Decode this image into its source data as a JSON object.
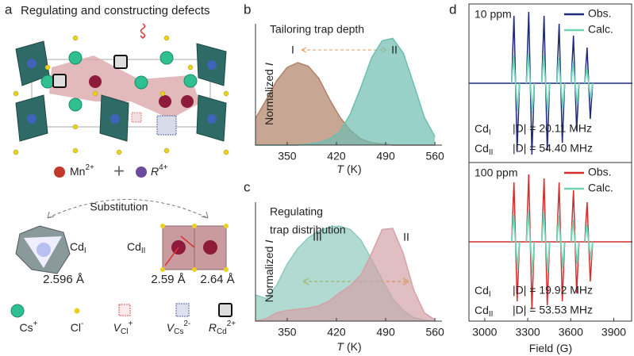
{
  "panel_a": {
    "label": "a",
    "title": "Regulating and constructing defects",
    "dopants": [
      {
        "main": "Mn",
        "sup": "2+"
      },
      {
        "main": "R",
        "sup": "4+"
      }
    ],
    "plus": "+",
    "substitution": "Substitution",
    "sites": [
      {
        "main": "Cd",
        "sub": "I"
      },
      {
        "main": "Cd",
        "sub": "II"
      }
    ],
    "bond_lengths": [
      "2.596 Å",
      "2.59 Å",
      "2.64 Å"
    ],
    "legend": [
      {
        "main": "Cs",
        "sup": "+"
      },
      {
        "main": "Cl",
        "sup": "-"
      },
      {
        "main": "V",
        "sub": "Cl",
        "sup": "+"
      },
      {
        "main": "V",
        "sub": "Cs",
        "sup": "2-"
      },
      {
        "main": "R",
        "sub": "Cd",
        "sup": "2+"
      }
    ]
  },
  "chart_data": [
    {
      "type": "area",
      "panel_label": "b",
      "title": "Tailoring trap depth",
      "xlabel": {
        "var": "T",
        "text": "(K)"
      },
      "ylabel": {
        "text": "Normalized",
        "var": "I"
      },
      "xlim": [
        305,
        570
      ],
      "xticks": [
        350,
        420,
        490,
        560
      ],
      "ylim": [
        0,
        1
      ],
      "x": [
        305,
        320,
        335,
        350,
        365,
        380,
        395,
        410,
        425,
        440,
        455,
        470,
        485,
        500,
        515,
        530,
        545,
        560
      ],
      "series": [
        {
          "name": "I",
          "color": "#b08066",
          "values": [
            0.22,
            0.37,
            0.53,
            0.64,
            0.68,
            0.65,
            0.55,
            0.38,
            0.23,
            0.12,
            0.05,
            0.02,
            0.01,
            0,
            0,
            0,
            0,
            0
          ]
        },
        {
          "name": "II",
          "color": "#6dbdb0",
          "values": [
            0,
            0,
            0,
            0,
            0,
            0.01,
            0.02,
            0.05,
            0.11,
            0.26,
            0.48,
            0.72,
            0.86,
            0.88,
            0.76,
            0.5,
            0.23,
            0.07
          ]
        }
      ]
    },
    {
      "type": "area",
      "panel_label": "c",
      "title": [
        "Regulating",
        "trap distribution"
      ],
      "xlabel": {
        "var": "T",
        "text": "(K)"
      },
      "ylabel": {
        "text": "Normalized",
        "var": "I"
      },
      "xlim": [
        305,
        570
      ],
      "xticks": [
        350,
        420,
        490,
        560
      ],
      "ylim": [
        0,
        1
      ],
      "x": [
        305,
        320,
        335,
        350,
        365,
        380,
        395,
        410,
        425,
        440,
        455,
        470,
        485,
        500,
        515,
        530,
        545,
        560
      ],
      "series": [
        {
          "name": "III",
          "color": "#8fcabf",
          "values": [
            0.22,
            0.19,
            0.3,
            0.48,
            0.61,
            0.7,
            0.76,
            0.79,
            0.8,
            0.77,
            0.68,
            0.52,
            0.35,
            0.19,
            0.09,
            0.03,
            0.01,
            0
          ]
        },
        {
          "name": "II",
          "color": "#d4a2a8",
          "values": [
            0,
            0.02,
            0.07,
            0.09,
            0.1,
            0.11,
            0.13,
            0.17,
            0.24,
            0.3,
            0.39,
            0.57,
            0.77,
            0.78,
            0.57,
            0.26,
            0.07,
            0.01
          ]
        }
      ]
    },
    {
      "type": "spectrum",
      "panel_label": "d",
      "label_text": "10 ppm",
      "xlim": [
        2890,
        4030
      ],
      "ylim": [
        -1,
        1
      ],
      "x": [
        3215,
        3318,
        3425,
        3530,
        3630,
        3725
      ],
      "series": [
        {
          "name": "Obs.",
          "color": "#1f2a7a",
          "values": [
            0.85,
            0.9,
            0.85,
            0.75,
            0.6,
            0.45
          ]
        },
        {
          "name": "Calc.",
          "color": "#6ed3b6",
          "values": [
            0.35,
            0.38,
            0.36,
            0.32,
            0.27,
            0.2
          ]
        }
      ],
      "annotations": [
        {
          "species": {
            "main": "Cd",
            "sub": "I"
          },
          "text": "|D| = 20.11 MHz"
        },
        {
          "species": {
            "main": "Cd",
            "sub": "II"
          },
          "text": "|D| = 54.40 MHz"
        }
      ]
    },
    {
      "type": "spectrum",
      "label_text": "100 ppm",
      "xlim": [
        2890,
        4030
      ],
      "xticks": [
        3000,
        3300,
        3600,
        3900
      ],
      "xlabel": {
        "text": "Field (G)"
      },
      "ylim": [
        -1,
        1
      ],
      "x": [
        3215,
        3318,
        3425,
        3530,
        3630,
        3725
      ],
      "series": [
        {
          "name": "Obs.",
          "color": "#d32f2f",
          "values": [
            0.75,
            0.85,
            0.8,
            0.75,
            0.65,
            0.5
          ]
        },
        {
          "name": "Calc.",
          "color": "#6ed3b6",
          "values": [
            0.35,
            0.4,
            0.38,
            0.33,
            0.28,
            0.22
          ]
        }
      ],
      "annotations": [
        {
          "species": {
            "main": "Cd",
            "sub": "I"
          },
          "text": "|D| = 19.92 MHz"
        },
        {
          "species": {
            "main": "Cd",
            "sub": "II"
          },
          "text": "|D| = 53.53 MHz"
        }
      ]
    }
  ]
}
